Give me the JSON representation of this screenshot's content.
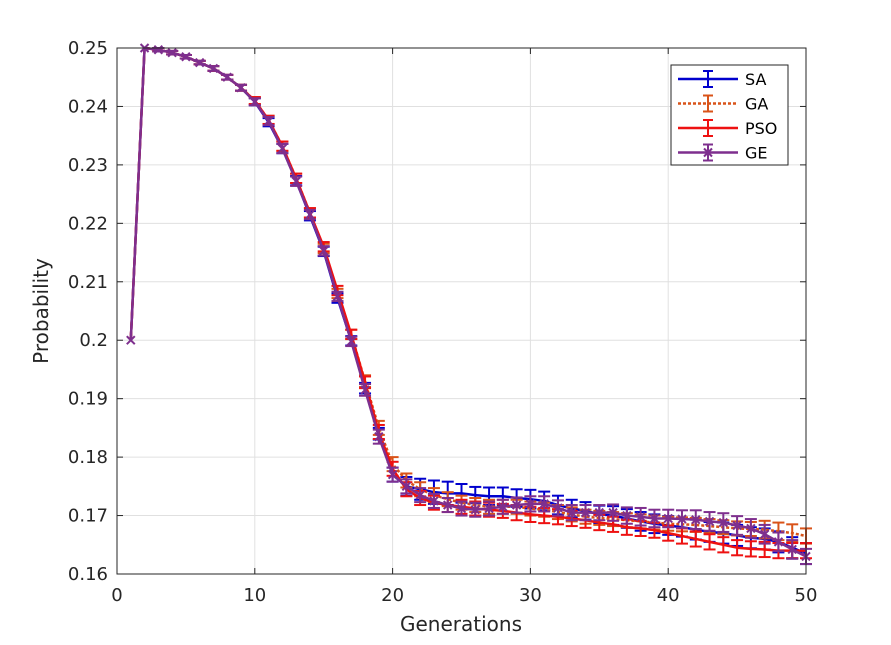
{
  "chart_data": {
    "type": "line",
    "title": "",
    "xlabel": "Generations",
    "ylabel": "Probability",
    "xlim": [
      0,
      50
    ],
    "ylim": [
      0.16,
      0.25
    ],
    "xticks": [
      "0",
      "10",
      "20",
      "30",
      "40",
      "50"
    ],
    "yticks": [
      "0.16",
      "0.17",
      "0.18",
      "0.19",
      "0.2",
      "0.21",
      "0.22",
      "0.23",
      "0.24",
      "0.25"
    ],
    "grid": true,
    "legend_position": "top-right",
    "x": [
      1,
      2,
      3,
      4,
      5,
      6,
      7,
      8,
      9,
      10,
      11,
      12,
      13,
      14,
      15,
      16,
      17,
      18,
      19,
      20,
      21,
      22,
      23,
      24,
      25,
      26,
      27,
      28,
      29,
      30,
      31,
      32,
      33,
      34,
      35,
      36,
      37,
      38,
      39,
      40,
      41,
      42,
      43,
      44,
      45,
      46,
      47,
      48,
      49,
      50
    ],
    "series": [
      {
        "name": "SA",
        "color": "#0000cd",
        "style": "solid",
        "marker": "none",
        "values": [
          0.2,
          0.25,
          0.2497,
          0.2492,
          0.2485,
          0.2475,
          0.2465,
          0.245,
          0.2432,
          0.2408,
          0.2373,
          0.2328,
          0.2273,
          0.2213,
          0.2152,
          0.2072,
          0.1999,
          0.1918,
          0.184,
          0.177,
          0.175,
          0.1745,
          0.174,
          0.1738,
          0.1738,
          0.1735,
          0.1733,
          0.1733,
          0.173,
          0.1728,
          0.1725,
          0.1718,
          0.1712,
          0.1708,
          0.1702,
          0.17,
          0.1695,
          0.169,
          0.1686,
          0.1683,
          0.168,
          0.1676,
          0.1672,
          0.167,
          0.1666,
          0.1662,
          0.166,
          0.1655,
          0.1645,
          0.1635
        ],
        "errors": [
          0,
          0,
          0.0003,
          0.0003,
          0.0003,
          0.0003,
          0.0004,
          0.0004,
          0.0005,
          0.0006,
          0.0007,
          0.0008,
          0.0008,
          0.0008,
          0.0008,
          0.0008,
          0.0008,
          0.0009,
          0.001,
          0.0012,
          0.0016,
          0.0018,
          0.002,
          0.002,
          0.0016,
          0.0014,
          0.0015,
          0.0015,
          0.0015,
          0.0016,
          0.0016,
          0.0016,
          0.0015,
          0.0015,
          0.0015,
          0.0016,
          0.0016,
          0.0016,
          0.0016,
          0.0016,
          0.0016,
          0.0017,
          0.0017,
          0.0018,
          0.0018,
          0.0018,
          0.0018,
          0.0018,
          0.0018,
          0.0018
        ]
      },
      {
        "name": "GA",
        "color": "#d95319",
        "style": "dotted",
        "marker": "none",
        "values": [
          0.2,
          0.25,
          0.2497,
          0.2492,
          0.2485,
          0.2475,
          0.2465,
          0.245,
          0.2432,
          0.241,
          0.2377,
          0.2332,
          0.2277,
          0.2218,
          0.2157,
          0.208,
          0.201,
          0.193,
          0.185,
          0.1788,
          0.176,
          0.1745,
          0.1735,
          0.1728,
          0.1722,
          0.1718,
          0.1715,
          0.1715,
          0.1715,
          0.1712,
          0.171,
          0.1706,
          0.1702,
          0.1698,
          0.1696,
          0.1694,
          0.1692,
          0.169,
          0.1688,
          0.1686,
          0.1685,
          0.1684,
          0.1682,
          0.168,
          0.1678,
          0.1677,
          0.1676,
          0.1673,
          0.167,
          0.1665
        ],
        "errors": [
          0,
          0,
          0.0003,
          0.0003,
          0.0003,
          0.0003,
          0.0004,
          0.0004,
          0.0005,
          0.0006,
          0.0007,
          0.0008,
          0.0008,
          0.0008,
          0.0008,
          0.0008,
          0.0008,
          0.001,
          0.0012,
          0.0012,
          0.0012,
          0.0012,
          0.0012,
          0.0012,
          0.0012,
          0.0012,
          0.0012,
          0.0012,
          0.0012,
          0.0012,
          0.0012,
          0.0012,
          0.0012,
          0.0012,
          0.0012,
          0.0012,
          0.0012,
          0.0012,
          0.0012,
          0.0012,
          0.0012,
          0.0012,
          0.0012,
          0.0012,
          0.0012,
          0.0012,
          0.0015,
          0.0015,
          0.0015,
          0.0013
        ]
      },
      {
        "name": "PSO",
        "color": "#ee1111",
        "style": "solid",
        "marker": "none",
        "values": [
          0.2,
          0.25,
          0.2497,
          0.2492,
          0.2485,
          0.2475,
          0.2465,
          0.245,
          0.2432,
          0.241,
          0.2377,
          0.2332,
          0.2277,
          0.2218,
          0.216,
          0.2085,
          0.201,
          0.1928,
          0.1843,
          0.178,
          0.1745,
          0.173,
          0.1722,
          0.1718,
          0.1715,
          0.1712,
          0.171,
          0.1708,
          0.1705,
          0.1702,
          0.17,
          0.1698,
          0.1695,
          0.1692,
          0.1688,
          0.1685,
          0.168,
          0.1678,
          0.1675,
          0.167,
          0.1665,
          0.166,
          0.1655,
          0.165,
          0.1645,
          0.1643,
          0.1642,
          0.164,
          0.164,
          0.164
        ],
        "errors": [
          0,
          0,
          0.0003,
          0.0003,
          0.0003,
          0.0003,
          0.0004,
          0.0004,
          0.0005,
          0.0006,
          0.0007,
          0.0008,
          0.0008,
          0.0008,
          0.0008,
          0.0008,
          0.0008,
          0.001,
          0.0012,
          0.0012,
          0.0012,
          0.0012,
          0.0012,
          0.0012,
          0.0012,
          0.0012,
          0.0012,
          0.0012,
          0.0013,
          0.0013,
          0.0013,
          0.0013,
          0.0013,
          0.0013,
          0.0013,
          0.0013,
          0.0013,
          0.0013,
          0.0013,
          0.0013,
          0.0013,
          0.0013,
          0.0013,
          0.0013,
          0.0013,
          0.0013,
          0.0013,
          0.0013,
          0.0013,
          0.0013
        ]
      },
      {
        "name": "GE",
        "color": "#7e2f8e",
        "style": "solid",
        "marker": "x",
        "values": [
          0.2,
          0.25,
          0.2497,
          0.2492,
          0.2485,
          0.2475,
          0.2465,
          0.245,
          0.2432,
          0.2408,
          0.2375,
          0.2328,
          0.2272,
          0.2215,
          0.2153,
          0.2075,
          0.1998,
          0.1915,
          0.1835,
          0.177,
          0.175,
          0.1735,
          0.1725,
          0.1718,
          0.1712,
          0.171,
          0.1712,
          0.1715,
          0.1718,
          0.172,
          0.172,
          0.1713,
          0.1705,
          0.1705,
          0.1705,
          0.1705,
          0.17,
          0.1698,
          0.1695,
          0.1695,
          0.1694,
          0.1693,
          0.169,
          0.1688,
          0.1683,
          0.1678,
          0.1668,
          0.1655,
          0.1642,
          0.163
        ],
        "errors": [
          0,
          0,
          0.0003,
          0.0003,
          0.0003,
          0.0003,
          0.0004,
          0.0004,
          0.0005,
          0.0006,
          0.0007,
          0.0008,
          0.0008,
          0.0008,
          0.0008,
          0.0008,
          0.0008,
          0.001,
          0.0012,
          0.0012,
          0.0012,
          0.0012,
          0.0012,
          0.0012,
          0.0012,
          0.0012,
          0.0012,
          0.0012,
          0.0013,
          0.0013,
          0.0013,
          0.0013,
          0.0013,
          0.0013,
          0.0013,
          0.0014,
          0.0014,
          0.0015,
          0.0015,
          0.0015,
          0.0015,
          0.0016,
          0.0016,
          0.0016,
          0.0016,
          0.0016,
          0.0016,
          0.0016,
          0.0016,
          0.0013
        ]
      }
    ]
  }
}
